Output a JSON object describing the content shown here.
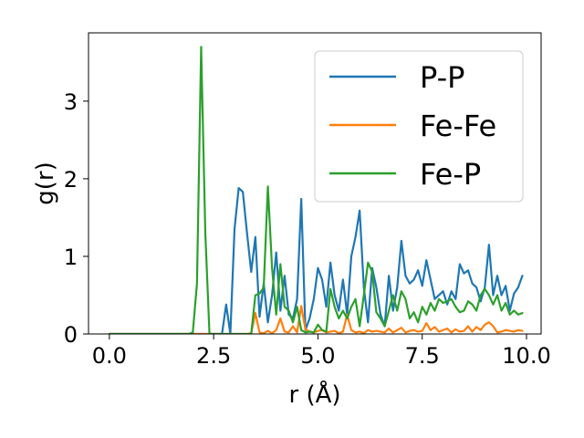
{
  "chart_data": {
    "type": "line",
    "title": "",
    "xlabel": "r (Å)",
    "ylabel": "g(r)",
    "xlim": [
      -0.5,
      10.35
    ],
    "ylim": [
      0,
      3.88
    ],
    "xticks": [
      0,
      2.5,
      5,
      7.5,
      10
    ],
    "xtick_labels": [
      "0.0",
      "2.5",
      "5.0",
      "7.5",
      "10.0"
    ],
    "yticks": [
      0,
      1,
      2,
      3
    ],
    "ytick_labels": [
      "0",
      "1",
      "2",
      "3"
    ],
    "grid": false,
    "legend_position": "top-right",
    "series": [
      {
        "name": "P-P",
        "color": "#1f77b4",
        "points": [
          [
            0,
            0
          ],
          [
            2.0,
            0
          ],
          [
            2.5,
            0
          ],
          [
            2.7,
            0
          ],
          [
            2.8,
            0.38
          ],
          [
            2.9,
            0
          ],
          [
            3.0,
            1.35
          ],
          [
            3.1,
            1.88
          ],
          [
            3.2,
            1.83
          ],
          [
            3.3,
            1.3
          ],
          [
            3.4,
            0.8
          ],
          [
            3.5,
            1.25
          ],
          [
            3.6,
            0.22
          ],
          [
            3.7,
            0.65
          ],
          [
            3.8,
            0.15
          ],
          [
            3.9,
            0.5
          ],
          [
            4.0,
            1.05
          ],
          [
            4.1,
            0.3
          ],
          [
            4.2,
            0.75
          ],
          [
            4.3,
            0.25
          ],
          [
            4.4,
            0.2
          ],
          [
            4.5,
            0.45
          ],
          [
            4.6,
            1.74
          ],
          [
            4.7,
            0.05
          ],
          [
            4.8,
            0.2
          ],
          [
            4.9,
            0.45
          ],
          [
            5.0,
            0.85
          ],
          [
            5.1,
            0.7
          ],
          [
            5.2,
            0.35
          ],
          [
            5.3,
            0.92
          ],
          [
            5.4,
            0.5
          ],
          [
            5.5,
            0.3
          ],
          [
            5.6,
            0.7
          ],
          [
            5.7,
            0.25
          ],
          [
            5.8,
            1.0
          ],
          [
            5.9,
            1.25
          ],
          [
            6.0,
            1.59
          ],
          [
            6.1,
            0.6
          ],
          [
            6.2,
            0.15
          ],
          [
            6.3,
            0.85
          ],
          [
            6.4,
            0.6
          ],
          [
            6.5,
            0.25
          ],
          [
            6.6,
            0.1
          ],
          [
            6.7,
            0.75
          ],
          [
            6.8,
            0.3
          ],
          [
            6.9,
            0.6
          ],
          [
            7.0,
            1.2
          ],
          [
            7.1,
            0.75
          ],
          [
            7.2,
            0.65
          ],
          [
            7.3,
            0.7
          ],
          [
            7.4,
            0.82
          ],
          [
            7.5,
            0.62
          ],
          [
            7.6,
            0.95
          ],
          [
            7.7,
            0.7
          ],
          [
            7.8,
            0.45
          ],
          [
            7.9,
            0.5
          ],
          [
            8.0,
            0.55
          ],
          [
            8.1,
            0.38
          ],
          [
            8.2,
            0.55
          ],
          [
            8.3,
            0.45
          ],
          [
            8.4,
            0.9
          ],
          [
            8.5,
            0.78
          ],
          [
            8.6,
            0.82
          ],
          [
            8.7,
            0.65
          ],
          [
            8.8,
            0.6
          ],
          [
            8.9,
            0.42
          ],
          [
            9.0,
            0.6
          ],
          [
            9.1,
            1.15
          ],
          [
            9.2,
            0.5
          ],
          [
            9.3,
            0.75
          ],
          [
            9.4,
            0.5
          ],
          [
            9.5,
            0.62
          ],
          [
            9.6,
            0.3
          ],
          [
            9.7,
            0.52
          ],
          [
            9.8,
            0.6
          ],
          [
            9.9,
            0.75
          ]
        ]
      },
      {
        "name": "Fe-Fe",
        "color": "#ff7f0e",
        "points": [
          [
            0,
            0
          ],
          [
            3.3,
            0
          ],
          [
            3.4,
            0.01
          ],
          [
            3.5,
            0.27
          ],
          [
            3.6,
            0.02
          ],
          [
            3.7,
            0.01
          ],
          [
            3.8,
            0.04
          ],
          [
            3.9,
            0.01
          ],
          [
            4.0,
            0.05
          ],
          [
            4.1,
            0.2
          ],
          [
            4.2,
            0.03
          ],
          [
            4.3,
            0.02
          ],
          [
            4.4,
            0.1
          ],
          [
            4.5,
            0.02
          ],
          [
            4.6,
            0.36
          ],
          [
            4.7,
            0.06
          ],
          [
            4.8,
            0.03
          ],
          [
            4.9,
            0.02
          ],
          [
            5.0,
            0.04
          ],
          [
            5.1,
            0.05
          ],
          [
            5.2,
            0.02
          ],
          [
            5.3,
            0.03
          ],
          [
            5.4,
            0.04
          ],
          [
            5.5,
            0.01
          ],
          [
            5.6,
            0.03
          ],
          [
            5.7,
            0.25
          ],
          [
            5.8,
            0.05
          ],
          [
            5.9,
            0.02
          ],
          [
            6.0,
            0.03
          ],
          [
            6.1,
            0.01
          ],
          [
            6.2,
            0.05
          ],
          [
            6.3,
            0.03
          ],
          [
            6.4,
            0.04
          ],
          [
            6.5,
            0.03
          ],
          [
            6.6,
            0.02
          ],
          [
            6.7,
            0.07
          ],
          [
            6.8,
            0.02
          ],
          [
            6.9,
            0.05
          ],
          [
            7.0,
            0.08
          ],
          [
            7.1,
            0.02
          ],
          [
            7.2,
            0.04
          ],
          [
            7.3,
            0.05
          ],
          [
            7.4,
            0.03
          ],
          [
            7.5,
            0.04
          ],
          [
            7.6,
            0.14
          ],
          [
            7.7,
            0.05
          ],
          [
            7.8,
            0.09
          ],
          [
            7.9,
            0.03
          ],
          [
            8.0,
            0.05
          ],
          [
            8.1,
            0.07
          ],
          [
            8.2,
            0.02
          ],
          [
            8.3,
            0.06
          ],
          [
            8.4,
            0.03
          ],
          [
            8.5,
            0.04
          ],
          [
            8.6,
            0.1
          ],
          [
            8.7,
            0.03
          ],
          [
            8.8,
            0.09
          ],
          [
            8.9,
            0.05
          ],
          [
            9.0,
            0.12
          ],
          [
            9.1,
            0.15
          ],
          [
            9.2,
            0.1
          ],
          [
            9.3,
            0.02
          ],
          [
            9.4,
            0.03
          ],
          [
            9.5,
            0.05
          ],
          [
            9.6,
            0.04
          ],
          [
            9.7,
            0.03
          ],
          [
            9.8,
            0.05
          ],
          [
            9.9,
            0.04
          ]
        ]
      },
      {
        "name": "Fe-P",
        "color": "#2ca02c",
        "points": [
          [
            0,
            0
          ],
          [
            1.9,
            0
          ],
          [
            2.0,
            0.02
          ],
          [
            2.1,
            0.65
          ],
          [
            2.2,
            3.7
          ],
          [
            2.3,
            1.3
          ],
          [
            2.4,
            0
          ],
          [
            2.5,
            0
          ],
          [
            3.0,
            0
          ],
          [
            3.4,
            0
          ],
          [
            3.5,
            0.5
          ],
          [
            3.6,
            0.52
          ],
          [
            3.7,
            0.6
          ],
          [
            3.8,
            1.9
          ],
          [
            3.9,
            0.85
          ],
          [
            4.0,
            0.25
          ],
          [
            4.1,
            0.9
          ],
          [
            4.2,
            0.35
          ],
          [
            4.3,
            0.3
          ],
          [
            4.4,
            0.15
          ],
          [
            4.5,
            0.35
          ],
          [
            4.6,
            0.05
          ],
          [
            4.7,
            0.02
          ],
          [
            4.8,
            0.03
          ],
          [
            4.9,
            0.02
          ],
          [
            5.0,
            0.12
          ],
          [
            5.1,
            0.05
          ],
          [
            5.2,
            0.03
          ],
          [
            5.3,
            0.58
          ],
          [
            5.4,
            0.35
          ],
          [
            5.5,
            0.2
          ],
          [
            5.6,
            0.3
          ],
          [
            5.7,
            0.2
          ],
          [
            5.8,
            0.35
          ],
          [
            5.9,
            0.45
          ],
          [
            6.0,
            0.1
          ],
          [
            6.1,
            0.5
          ],
          [
            6.2,
            0.92
          ],
          [
            6.3,
            0.8
          ],
          [
            6.4,
            0.28
          ],
          [
            6.5,
            0.2
          ],
          [
            6.6,
            0.1
          ],
          [
            6.7,
            0.3
          ],
          [
            6.8,
            0.5
          ],
          [
            6.9,
            0.3
          ],
          [
            7.0,
            0.55
          ],
          [
            7.1,
            0.45
          ],
          [
            7.2,
            0.2
          ],
          [
            7.3,
            0.28
          ],
          [
            7.4,
            0.15
          ],
          [
            7.5,
            0.35
          ],
          [
            7.6,
            0.25
          ],
          [
            7.7,
            0.4
          ],
          [
            7.8,
            0.3
          ],
          [
            7.9,
            0.45
          ],
          [
            8.0,
            0.4
          ],
          [
            8.1,
            0.42
          ],
          [
            8.2,
            0.45
          ],
          [
            8.3,
            0.35
          ],
          [
            8.4,
            0.28
          ],
          [
            8.5,
            0.3
          ],
          [
            8.6,
            0.42
          ],
          [
            8.7,
            0.38
          ],
          [
            8.8,
            0.3
          ],
          [
            8.9,
            0.5
          ],
          [
            9.0,
            0.58
          ],
          [
            9.1,
            0.5
          ],
          [
            9.2,
            0.38
          ],
          [
            9.3,
            0.5
          ],
          [
            9.4,
            0.3
          ],
          [
            9.5,
            0.4
          ],
          [
            9.6,
            0.25
          ],
          [
            9.7,
            0.3
          ],
          [
            9.8,
            0.25
          ],
          [
            9.9,
            0.27
          ]
        ]
      }
    ]
  }
}
